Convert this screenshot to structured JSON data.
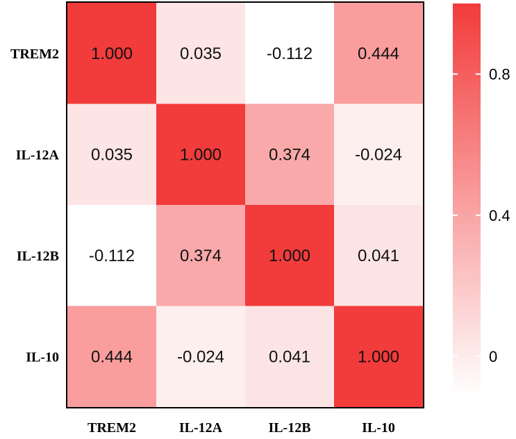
{
  "chart_data": {
    "type": "heatmap",
    "rows": [
      "TREM2",
      "IL-12A",
      "IL-12B",
      "IL-10"
    ],
    "columns": [
      "TREM2",
      "IL-12A",
      "IL-12B",
      "IL-10"
    ],
    "values": [
      [
        1.0,
        0.035,
        -0.112,
        0.444
      ],
      [
        0.035,
        1.0,
        0.374,
        -0.024
      ],
      [
        -0.112,
        0.374,
        1.0,
        0.041
      ],
      [
        0.444,
        -0.024,
        0.041,
        1.0
      ]
    ],
    "cell_labels": [
      [
        "1.000",
        "0.035",
        "-0.112",
        "0.444"
      ],
      [
        "0.035",
        "1.000",
        "0.374",
        "-0.024"
      ],
      [
        "-0.112",
        "0.374",
        "1.000",
        "0.041"
      ],
      [
        "0.444",
        "-0.024",
        "0.041",
        "1.000"
      ]
    ],
    "colorbar": {
      "ticks": [
        0,
        0.4,
        0.8
      ],
      "tick_labels": [
        "0",
        "0.4",
        "0.8"
      ],
      "range": [
        -0.112,
        1.0
      ],
      "low_color": "#ffffff",
      "high_color": "#f23b3b"
    },
    "title": "",
    "xlabel": "",
    "ylabel": ""
  }
}
